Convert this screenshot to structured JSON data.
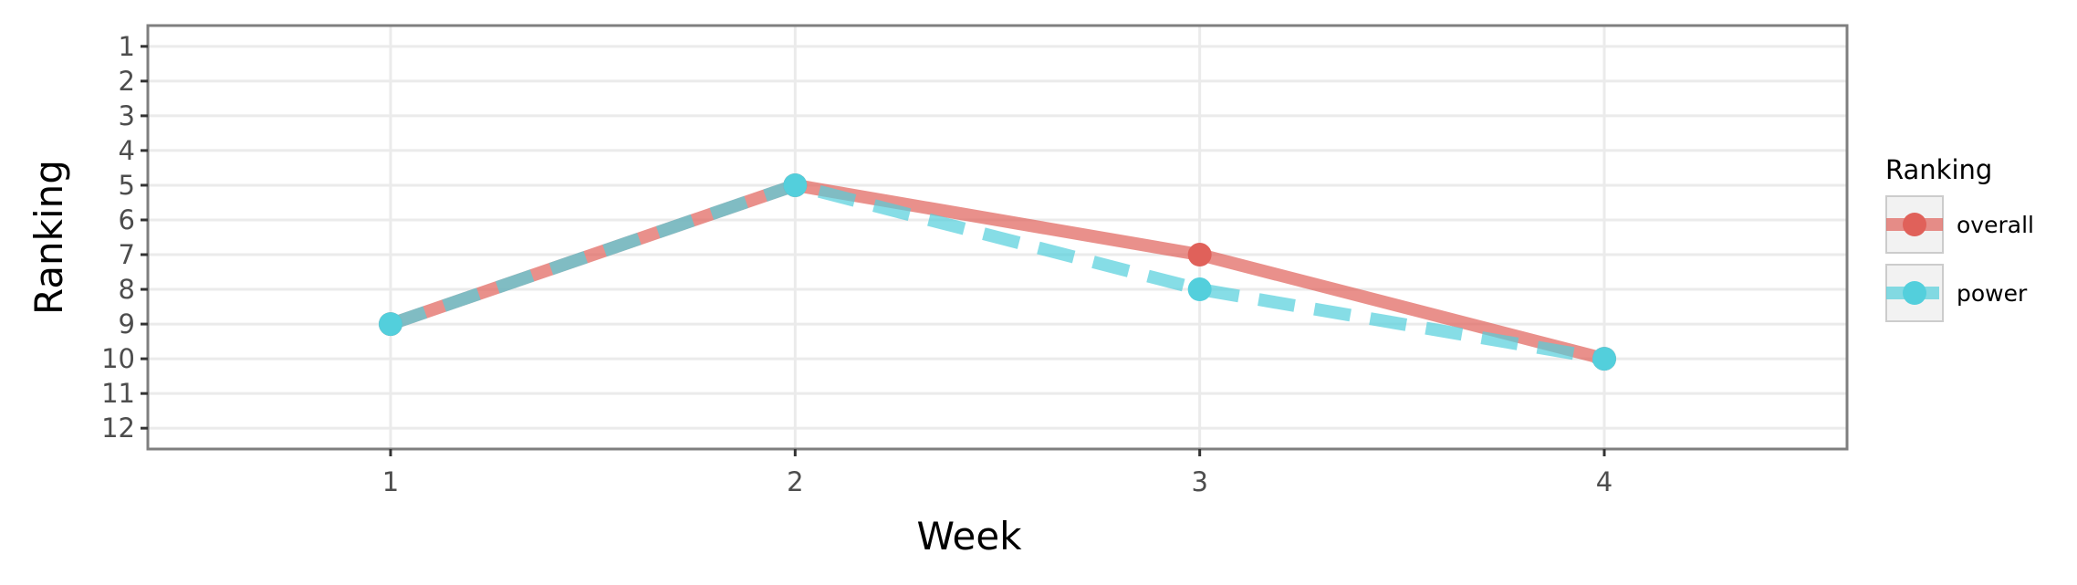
{
  "chart_data": {
    "type": "line",
    "xlabel": "Week",
    "ylabel": "Ranking",
    "x": [
      1,
      2,
      3,
      4
    ],
    "xlim": [
      0.4,
      4.6
    ],
    "ylim": [
      12.6,
      0.4
    ],
    "y_reversed": true,
    "x_ticks": [
      1,
      2,
      3,
      4
    ],
    "x_tick_labels": [
      "1",
      "2",
      "3",
      "4"
    ],
    "y_ticks": [
      1,
      2,
      3,
      4,
      5,
      6,
      7,
      8,
      9,
      10,
      11,
      12
    ],
    "y_tick_labels": [
      "1",
      "2",
      "3",
      "4",
      "5",
      "6",
      "7",
      "8",
      "9",
      "10",
      "11",
      "12"
    ],
    "grid": true,
    "legend": {
      "title": "Ranking",
      "position": "right"
    },
    "series": [
      {
        "name": "overall",
        "values": [
          9,
          5,
          7,
          10
        ],
        "color": "#e0615a",
        "line_style": "solid"
      },
      {
        "name": "power",
        "values": [
          9,
          5,
          8,
          10
        ],
        "color": "#53cfdc",
        "line_style": "dashed"
      }
    ]
  }
}
